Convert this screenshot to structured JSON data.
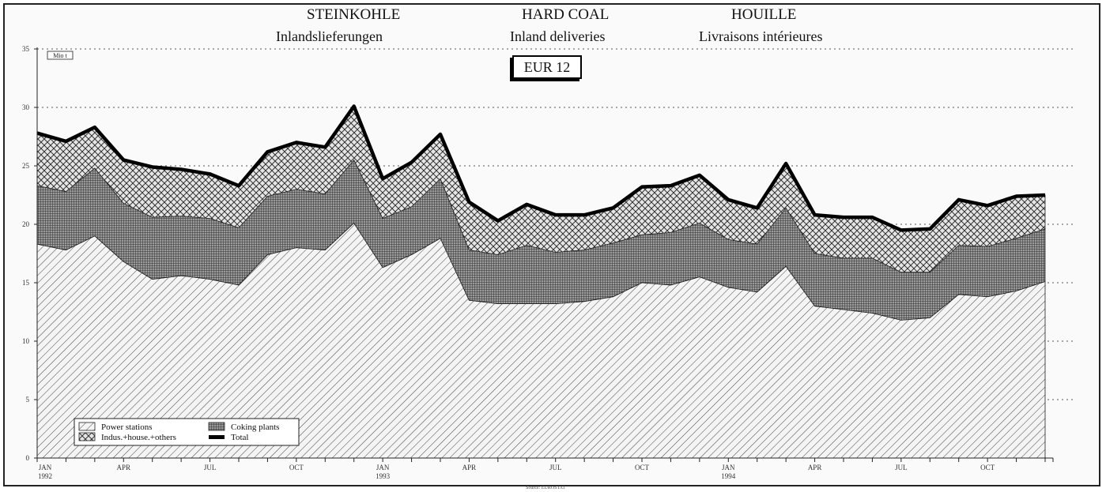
{
  "titles": {
    "de": "STEINKOHLE",
    "en": "HARD COAL",
    "fr": "HOUILLE",
    "sub_de": "Inlandslieferungen",
    "sub_en": "Inland deliveries",
    "sub_fr": "Livraisons intérieures",
    "region": "EUR 12"
  },
  "unit": "Mio t",
  "source": "Source: EUROSTAT",
  "chart_data": {
    "type": "area",
    "stacked": true,
    "ylim": [
      0,
      35
    ],
    "y_ticks": [
      0,
      5,
      10,
      15,
      20,
      25,
      30,
      35
    ],
    "grid": "horizontal dotted",
    "legend_placement": "bottom-left",
    "x": [
      "1992-01",
      "1992-02",
      "1992-03",
      "1992-04",
      "1992-05",
      "1992-06",
      "1992-07",
      "1992-08",
      "1992-09",
      "1992-10",
      "1992-11",
      "1992-12",
      "1993-01",
      "1993-02",
      "1993-03",
      "1993-04",
      "1993-05",
      "1993-06",
      "1993-07",
      "1993-08",
      "1993-09",
      "1993-10",
      "1993-11",
      "1993-12",
      "1994-01",
      "1994-02",
      "1994-03",
      "1994-04",
      "1994-05",
      "1994-06",
      "1994-07",
      "1994-08",
      "1994-09",
      "1994-10",
      "1994-11",
      "1994-12"
    ],
    "x_tick_labels": [
      {
        "label": "JAN",
        "sub": "1992"
      },
      {
        "label": "APR",
        "sub": ""
      },
      {
        "label": "JUL",
        "sub": ""
      },
      {
        "label": "OCT",
        "sub": ""
      },
      {
        "label": "JAN",
        "sub": "1993"
      },
      {
        "label": "APR",
        "sub": ""
      },
      {
        "label": "JUL",
        "sub": ""
      },
      {
        "label": "OCT",
        "sub": ""
      },
      {
        "label": "JAN",
        "sub": "1994"
      },
      {
        "label": "APR",
        "sub": ""
      },
      {
        "label": "JUL",
        "sub": ""
      },
      {
        "label": "OCT",
        "sub": ""
      }
    ],
    "series": [
      {
        "name": "Power stations",
        "pattern": "diagonal",
        "values": [
          18.3,
          17.8,
          19.0,
          16.8,
          15.3,
          15.6,
          15.3,
          14.8,
          17.4,
          18.0,
          17.8,
          20.1,
          16.3,
          17.4,
          18.8,
          13.5,
          13.2,
          13.2,
          13.2,
          13.4,
          13.8,
          15.0,
          14.8,
          15.5,
          14.6,
          14.2,
          16.4,
          13.0,
          12.7,
          12.4,
          11.8,
          12.0,
          14.0,
          13.8,
          14.3,
          15.1
        ]
      },
      {
        "name": "Coking plants",
        "pattern": "crosshatch",
        "values": [
          5.0,
          5.0,
          5.8,
          5.0,
          5.3,
          5.1,
          5.2,
          4.9,
          5.0,
          5.0,
          4.8,
          5.4,
          4.2,
          4.1,
          5.1,
          4.3,
          4.2,
          5.0,
          4.4,
          4.4,
          4.6,
          4.1,
          4.5,
          4.6,
          4.1,
          4.1,
          5.0,
          4.5,
          4.4,
          4.7,
          4.1,
          3.9,
          4.2,
          4.3,
          4.5,
          4.5
        ]
      },
      {
        "name": "Indus.+house.+others",
        "pattern": "cross-diagonal",
        "values": [
          4.5,
          4.3,
          3.5,
          3.7,
          4.3,
          4.0,
          3.8,
          3.6,
          3.8,
          4.0,
          4.0,
          4.6,
          3.4,
          3.8,
          3.8,
          4.1,
          2.9,
          3.5,
          3.2,
          3.0,
          3.0,
          4.1,
          4.0,
          4.1,
          3.4,
          3.1,
          3.8,
          3.3,
          3.5,
          3.5,
          3.6,
          3.7,
          3.9,
          3.5,
          3.6,
          2.9
        ]
      }
    ],
    "total": {
      "name": "Total",
      "values": [
        27.8,
        27.1,
        28.3,
        25.5,
        24.9,
        24.7,
        24.3,
        23.3,
        26.2,
        27.0,
        26.6,
        30.1,
        23.9,
        25.3,
        27.7,
        21.9,
        20.3,
        21.7,
        20.8,
        20.8,
        21.4,
        23.2,
        23.3,
        24.2,
        22.1,
        21.4,
        25.2,
        20.8,
        20.6,
        20.6,
        19.5,
        19.6,
        22.1,
        21.6,
        22.4,
        22.5
      ]
    }
  },
  "legend": [
    {
      "label": "Power stations",
      "swatch": "diagonal"
    },
    {
      "label": "Coking plants",
      "swatch": "crosshatch"
    },
    {
      "label": "Indus.+house.+others",
      "swatch": "cross-diagonal"
    },
    {
      "label": "Total",
      "swatch": "solid"
    }
  ]
}
